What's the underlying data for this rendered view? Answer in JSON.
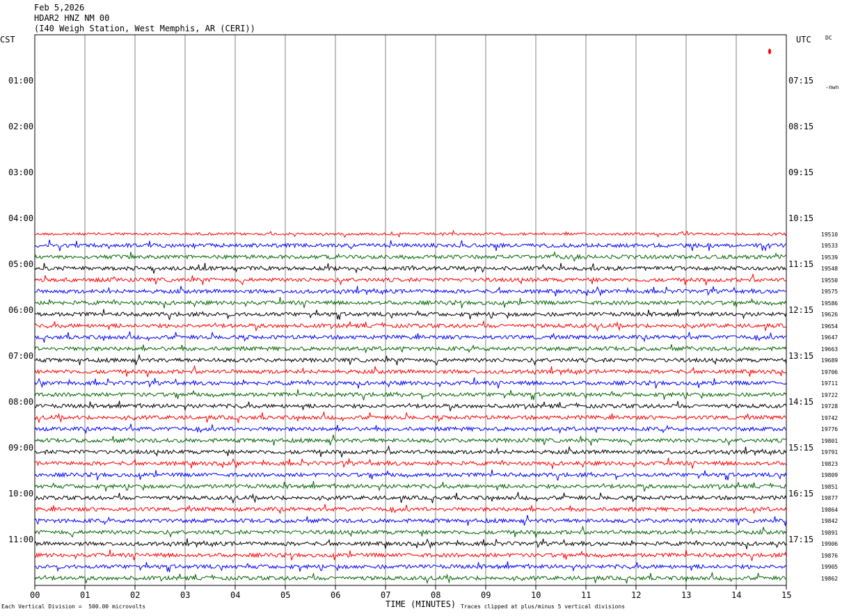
{
  "header": {
    "date": "Feb 5,2026",
    "station": "HDAR2 HNZ NM 00",
    "location": "(I40 Weigh Station, West Memphis, AR (CERI))"
  },
  "timezones": {
    "left": "CST",
    "right": "UTC"
  },
  "side_labels": {
    "dc": "DC",
    "nwn": "-nwn"
  },
  "footer": {
    "scale": "Each Vertical Division =  500.00 microvolts",
    "xtitle": "TIME (MINUTES)",
    "clip": "Traces clipped at plus/minus 5 vertical divisions"
  },
  "colors": {
    "trace_cycle": [
      "#ff0000",
      "#0000ff",
      "#006400",
      "#000000"
    ],
    "grid": "#808080"
  },
  "chart_data": {
    "type": "line",
    "xlabel": "TIME (MINUTES)",
    "xlim": [
      0,
      15
    ],
    "x_ticks": [
      "00",
      "01",
      "02",
      "03",
      "04",
      "05",
      "06",
      "07",
      "08",
      "09",
      "10",
      "11",
      "12",
      "13",
      "14",
      "15"
    ],
    "left_hour_labels": [
      "01:00",
      "02:00",
      "03:00",
      "04:00",
      "05:00",
      "06:00",
      "07:00",
      "08:00",
      "09:00",
      "10:00",
      "11:00"
    ],
    "right_hour_labels": [
      "07:15",
      "08:15",
      "09:15",
      "10:15",
      "11:15",
      "12:15",
      "13:15",
      "14:15",
      "15:15",
      "16:15",
      "17:15"
    ],
    "traces_start_row": 17,
    "trace_counts": [
      "19510",
      "19533",
      "19539",
      "19548",
      "19550",
      "19575",
      "19586",
      "19626",
      "19654",
      "19647",
      "19663",
      "19689",
      "19706",
      "19711",
      "19722",
      "19728",
      "19742",
      "19776",
      "19801",
      "19791",
      "19823",
      "19809",
      "19851",
      "19877",
      "19864",
      "19842",
      "19891",
      "19906",
      "19876",
      "19905",
      "19862"
    ]
  }
}
